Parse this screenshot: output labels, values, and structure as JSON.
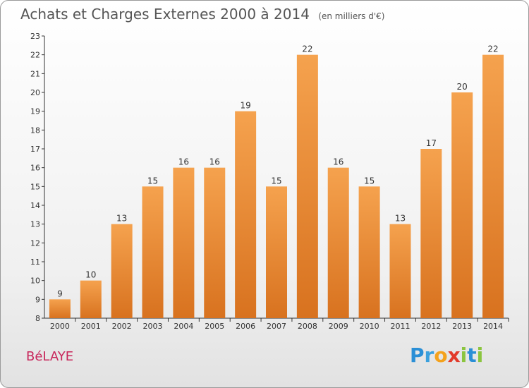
{
  "title": "Achats et Charges Externes 2000 à 2014",
  "subtitle": "(en milliers d'€)",
  "commune": "BéLAYE",
  "logo": {
    "letters": [
      "P",
      "r",
      "o",
      "x",
      "i",
      "t",
      "i"
    ],
    "colors": [
      "#2a8fd6",
      "#3aa0dd",
      "#f4a21c",
      "#e23a2a",
      "#8bc53f",
      "#2a8fd6",
      "#8bc53f"
    ]
  },
  "colors": {
    "bar_top": "#f5a24e",
    "bar_bottom": "#d8721f",
    "commune": "#c8265b"
  },
  "chart_data": {
    "type": "bar",
    "categories": [
      "2000",
      "2001",
      "2002",
      "2003",
      "2004",
      "2005",
      "2006",
      "2007",
      "2008",
      "2009",
      "2010",
      "2011",
      "2012",
      "2013",
      "2014"
    ],
    "values": [
      9,
      10,
      13,
      15,
      16,
      16,
      19,
      15,
      22,
      16,
      15,
      13,
      17,
      20,
      22
    ],
    "ylim": [
      8,
      23
    ],
    "yticks": [
      8,
      9,
      10,
      11,
      12,
      13,
      14,
      15,
      16,
      17,
      18,
      19,
      20,
      21,
      22,
      23
    ],
    "grid": false,
    "xlabel": "",
    "ylabel": ""
  }
}
